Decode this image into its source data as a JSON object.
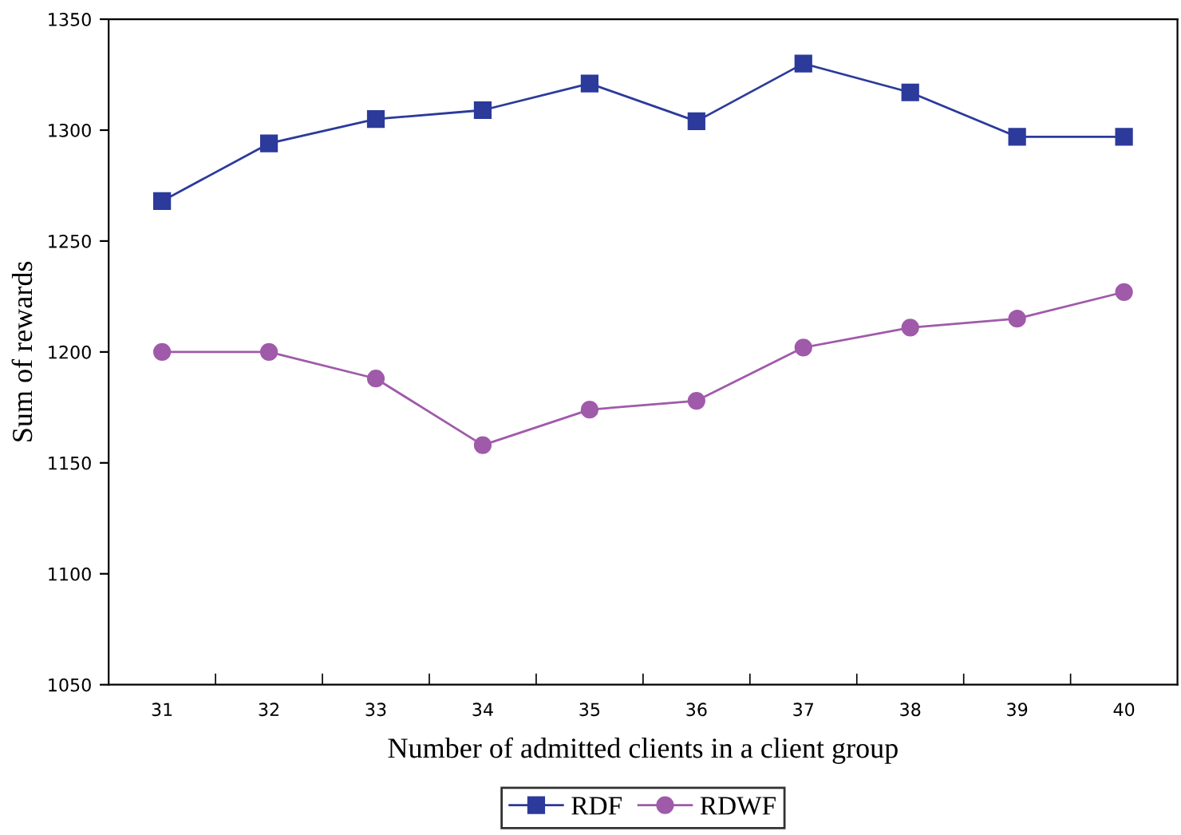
{
  "chart_data": {
    "type": "line",
    "xlabel": "Number of admitted clients in a client group",
    "ylabel": "Sum of rewards",
    "categories": [
      "31",
      "32",
      "33",
      "34",
      "35",
      "36",
      "37",
      "38",
      "39",
      "40"
    ],
    "series": [
      {
        "name": "RDF",
        "color": "#2b3a9b",
        "marker": "square",
        "values": [
          1268,
          1294,
          1305,
          1309,
          1321,
          1304,
          1330,
          1317,
          1297,
          1297
        ]
      },
      {
        "name": "RDWF",
        "color": "#a05aaa",
        "marker": "circle",
        "values": [
          1200,
          1200,
          1188,
          1158,
          1174,
          1178,
          1202,
          1211,
          1215,
          1227
        ]
      }
    ],
    "ylim": [
      1050,
      1350
    ],
    "yticks": [
      1050,
      1100,
      1150,
      1200,
      1250,
      1300,
      1350
    ],
    "grid": false,
    "legend": "bottom",
    "line_style": "solid"
  }
}
